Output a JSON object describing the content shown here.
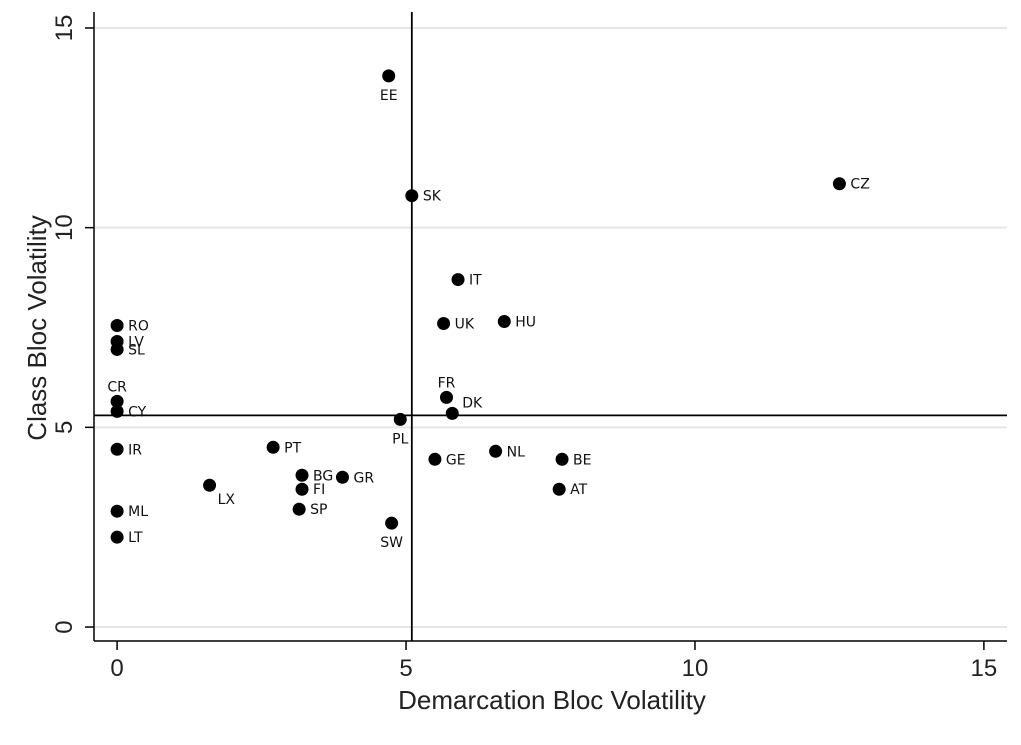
{
  "chart_data": {
    "type": "scatter",
    "xlabel": "Demarcation Bloc Volatility",
    "ylabel": "Class Bloc Volatility",
    "xlim": [
      -0.4,
      15.4
    ],
    "ylim": [
      -0.35,
      15.4
    ],
    "x_ticks": [
      "0",
      "5",
      "10",
      "15"
    ],
    "y_ticks": [
      "0",
      "5",
      "10",
      "15"
    ],
    "grid": "horizontal",
    "reference_lines": {
      "x": 5.1,
      "y": 5.3
    },
    "colors": {
      "marker": "#000000",
      "grid": "#e6e6e6",
      "axis": "#000000"
    },
    "points": [
      {
        "label": "EE",
        "x": 4.7,
        "y": 13.8,
        "pos": "below"
      },
      {
        "label": "SK",
        "x": 5.1,
        "y": 10.8,
        "pos": "right"
      },
      {
        "label": "CZ",
        "x": 12.5,
        "y": 11.1,
        "pos": "right"
      },
      {
        "label": "IT",
        "x": 5.9,
        "y": 8.7,
        "pos": "right"
      },
      {
        "label": "UK",
        "x": 5.65,
        "y": 7.6,
        "pos": "right"
      },
      {
        "label": "HU",
        "x": 6.7,
        "y": 7.65,
        "pos": "right"
      },
      {
        "label": "RO",
        "x": 0.0,
        "y": 7.55,
        "pos": "right"
      },
      {
        "label": "LV",
        "x": 0.0,
        "y": 7.15,
        "pos": "right"
      },
      {
        "label": "SL",
        "x": 0.0,
        "y": 6.95,
        "pos": "right"
      },
      {
        "label": "CR",
        "x": 0.0,
        "y": 5.65,
        "pos": "above"
      },
      {
        "label": "CY",
        "x": 0.0,
        "y": 5.4,
        "pos": "right"
      },
      {
        "label": "FR",
        "x": 5.7,
        "y": 5.75,
        "pos": "above"
      },
      {
        "label": "DK",
        "x": 5.8,
        "y": 5.35,
        "pos": "upright"
      },
      {
        "label": "PL",
        "x": 4.9,
        "y": 5.2,
        "pos": "below"
      },
      {
        "label": "IR",
        "x": 0.0,
        "y": 4.45,
        "pos": "right"
      },
      {
        "label": "PT",
        "x": 2.7,
        "y": 4.5,
        "pos": "right"
      },
      {
        "label": "NL",
        "x": 6.55,
        "y": 4.4,
        "pos": "right"
      },
      {
        "label": "GE",
        "x": 5.5,
        "y": 4.2,
        "pos": "right"
      },
      {
        "label": "BE",
        "x": 7.7,
        "y": 4.2,
        "pos": "right"
      },
      {
        "label": "BG",
        "x": 3.2,
        "y": 3.8,
        "pos": "right"
      },
      {
        "label": "GR",
        "x": 3.9,
        "y": 3.75,
        "pos": "right"
      },
      {
        "label": "FI",
        "x": 3.2,
        "y": 3.45,
        "pos": "right"
      },
      {
        "label": "LX",
        "x": 1.6,
        "y": 3.55,
        "pos": "belowright"
      },
      {
        "label": "AT",
        "x": 7.65,
        "y": 3.45,
        "pos": "right"
      },
      {
        "label": "SP",
        "x": 3.15,
        "y": 2.95,
        "pos": "right"
      },
      {
        "label": "ML",
        "x": 0.0,
        "y": 2.9,
        "pos": "right"
      },
      {
        "label": "SW",
        "x": 4.75,
        "y": 2.6,
        "pos": "below"
      },
      {
        "label": "LT",
        "x": 0.0,
        "y": 2.25,
        "pos": "right"
      }
    ]
  }
}
